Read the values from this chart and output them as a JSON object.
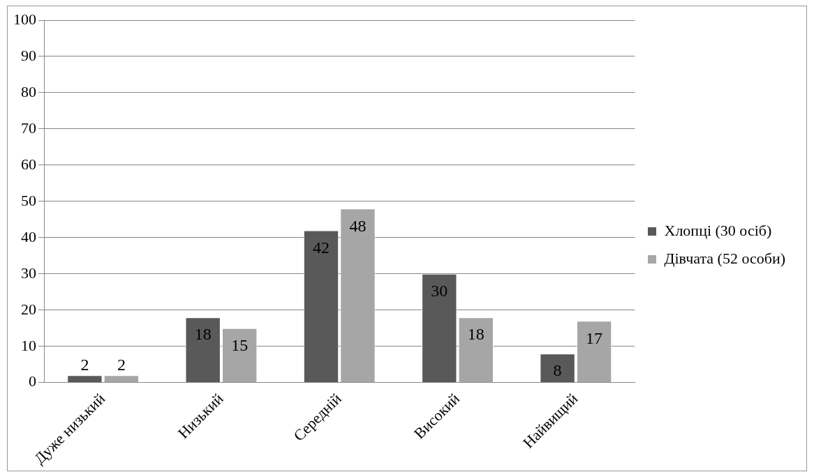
{
  "chart_data": {
    "type": "bar",
    "categories": [
      "Дуже низький",
      "Низький",
      "Середній",
      "Високий",
      "Найвищий"
    ],
    "series": [
      {
        "name": "Хлопці (30 осіб)",
        "color": "#595959",
        "values": [
          2,
          18,
          42,
          30,
          8
        ]
      },
      {
        "name": "Дівчата (52 особи)",
        "color": "#a6a6a6",
        "values": [
          2,
          15,
          48,
          18,
          17
        ]
      }
    ],
    "ylim": [
      0,
      100
    ],
    "yticks": [
      0,
      10,
      20,
      30,
      40,
      50,
      60,
      70,
      80,
      90,
      100
    ],
    "grid": "y",
    "legend": "right",
    "data_labels": true
  }
}
